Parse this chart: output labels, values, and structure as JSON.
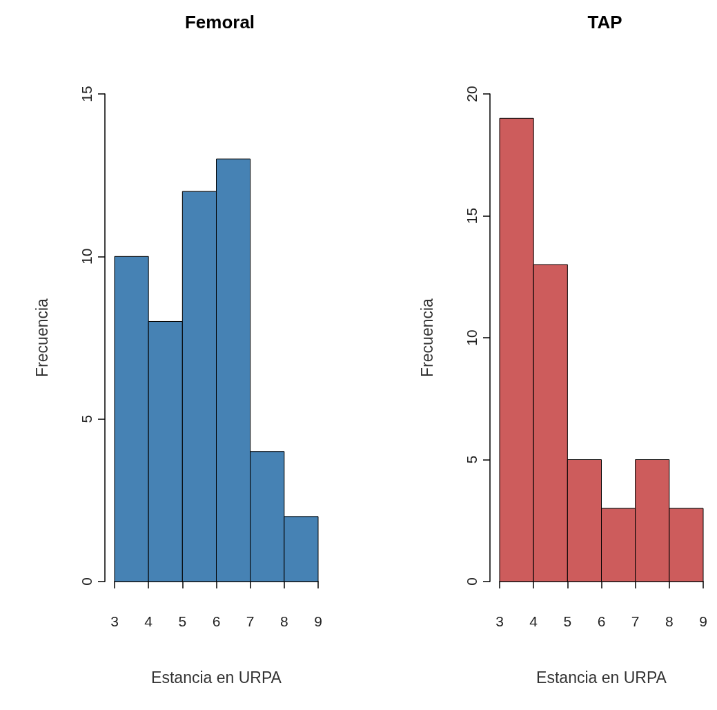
{
  "chart_data": [
    {
      "type": "histogram",
      "title": "Femoral",
      "xlabel": "Estancia en URPA",
      "ylabel": "Frecuencia",
      "bins": [
        3,
        4,
        5,
        6,
        7,
        8,
        9
      ],
      "values": [
        10,
        8,
        12,
        13,
        4,
        2
      ],
      "color": "#4682b4",
      "xlim": [
        3,
        9
      ],
      "xticks": [
        3,
        4,
        5,
        6,
        7,
        8,
        9
      ],
      "ylim": [
        0,
        15
      ],
      "yticks": [
        0,
        5,
        10,
        15
      ]
    },
    {
      "type": "histogram",
      "title": "TAP",
      "xlabel": "Estancia en URPA",
      "ylabel": "Frecuencia",
      "bins": [
        3,
        4,
        5,
        6,
        7,
        8,
        9
      ],
      "values": [
        19,
        13,
        5,
        3,
        5,
        3
      ],
      "color": "#cd5c5c",
      "xlim": [
        3,
        9
      ],
      "xticks": [
        3,
        4,
        5,
        6,
        7,
        8,
        9
      ],
      "ylim": [
        0,
        20
      ],
      "yticks": [
        0,
        5,
        10,
        15,
        20
      ]
    }
  ]
}
